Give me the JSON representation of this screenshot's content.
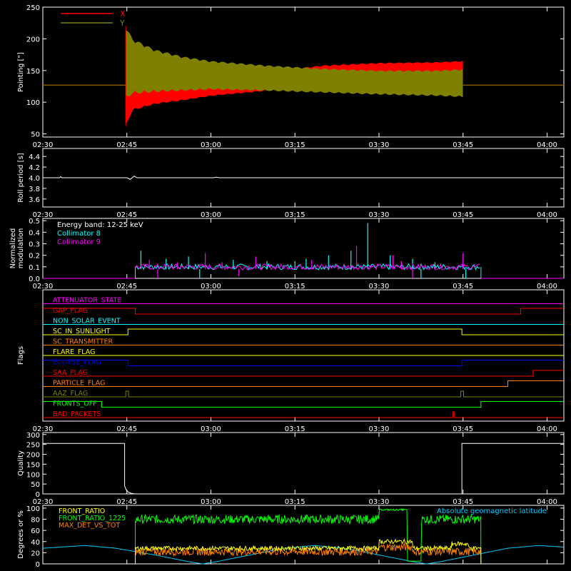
{
  "time_ticks": [
    "02:30",
    "02:45",
    "03:00",
    "03:15",
    "03:30",
    "03:45",
    "04:00"
  ],
  "chart_data": [
    {
      "type": "line",
      "id": "pointing",
      "ylabel": "Pointing [\"]",
      "ylim": [
        45,
        250
      ],
      "yticks": [
        50,
        100,
        150,
        200,
        250
      ],
      "legend_placement": "top-left",
      "series": [
        {
          "name": "X",
          "color": "#ff0000",
          "baseline": 127,
          "before": [
            [
              0,
              127
            ],
            [
              14.8,
              127
            ]
          ],
          "envelope_time": [
            14.8,
            16,
            20,
            25,
            30,
            40,
            50,
            60,
            70,
            75
          ],
          "envelope_low": [
            62,
            87,
            97,
            103,
            110,
            118,
            126,
            133,
            137,
            137
          ],
          "envelope_high": [
            125,
            138,
            134,
            131,
            132,
            148,
            158,
            162,
            163,
            165
          ],
          "after": [
            [
              75,
              127
            ],
            [
              93,
              127
            ]
          ]
        },
        {
          "name": "Y",
          "color": "#808000",
          "baseline": 127,
          "before": [
            [
              0,
              127
            ],
            [
              14.8,
              127
            ]
          ],
          "envelope_time": [
            14.8,
            16,
            20,
            25,
            30,
            40,
            50,
            60,
            70,
            75
          ],
          "envelope_low": [
            105,
            113,
            116,
            118,
            120,
            118,
            115,
            112,
            110,
            108
          ],
          "envelope_high": [
            220,
            200,
            183,
            172,
            165,
            158,
            153,
            150,
            150,
            152
          ],
          "after": [
            [
              75,
              127
            ],
            [
              93,
              127
            ]
          ]
        }
      ]
    },
    {
      "type": "line",
      "id": "roll-period",
      "ylabel": "Roll period [s]",
      "ylim": [
        3.45,
        4.55
      ],
      "yticks": [
        "3.6",
        "3.8",
        "4.0",
        "4.2",
        "4.4"
      ],
      "series": [
        {
          "name": "Roll period",
          "color": "#ffffff",
          "points": [
            [
              0,
              4.0
            ],
            [
              3,
              4.0
            ],
            [
              3.2,
              4.02
            ],
            [
              3.4,
              4.0
            ],
            [
              15,
              4.0
            ],
            [
              15.6,
              3.97
            ],
            [
              16.3,
              4.03
            ],
            [
              16.8,
              4.0
            ],
            [
              30.5,
              4.0
            ],
            [
              31,
              4.01
            ],
            [
              31.5,
              4.0
            ],
            [
              93,
              4.0
            ]
          ]
        }
      ]
    },
    {
      "type": "bar",
      "id": "modulation",
      "ylabel": "Normalized modulation",
      "ylim": [
        0,
        0.52
      ],
      "yticks": [
        "0.0",
        "0.1",
        "0.2",
        "0.3",
        "0.4",
        "0.5"
      ],
      "annotation": "Energy band: 12-25 keV",
      "legend_placement": "top-left",
      "active_range": [
        16.5,
        78.2
      ],
      "series": [
        {
          "name": "Collimator 8",
          "color": "#00ffff",
          "typical": 0.1,
          "spikes": [
            [
              17.5,
              0.24
            ],
            [
              22,
              0.17
            ],
            [
              26,
              0.19
            ],
            [
              34,
              0.16
            ],
            [
              40,
              0.15
            ],
            [
              45,
              0.15
            ],
            [
              47,
              0.17
            ],
            [
              51,
              0.2
            ],
            [
              55,
              0.24
            ],
            [
              58,
              0.48
            ],
            [
              62,
              0.2
            ],
            [
              66,
              0.17
            ],
            [
              70,
              0.14
            ]
          ],
          "dips": [
            [
              28,
              0.0
            ],
            [
              67.5,
              0.0
            ],
            [
              75.5,
              0.0
            ]
          ]
        },
        {
          "name": "Collimator 9",
          "color": "#ff00ff",
          "typical": 0.1,
          "spikes": [
            [
              19,
              0.16
            ],
            [
              24,
              0.14
            ],
            [
              29,
              0.22
            ],
            [
              32,
              0.14
            ],
            [
              38,
              0.19
            ],
            [
              48,
              0.16
            ],
            [
              56,
              0.28
            ],
            [
              62.5,
              0.2
            ],
            [
              64,
              0.15
            ],
            [
              75,
              0.22
            ]
          ],
          "dips": [
            [
              20.5,
              0.0
            ],
            [
              35,
              0.02
            ],
            [
              66,
              0.0
            ]
          ]
        }
      ]
    },
    {
      "type": "line",
      "id": "flags",
      "ylabel": "Flags",
      "series": [
        {
          "name": "ATTENUATOR_STATE",
          "color": "#ff00ff",
          "segments": [
            [
              0,
              0
            ],
            [
              93,
              0
            ]
          ]
        },
        {
          "name": "GAP_FLAG",
          "color": "#ff0000",
          "segments": [
            [
              0,
              1
            ],
            [
              16.5,
              1
            ],
            [
              16.5,
              0
            ],
            [
              85.3,
              0
            ],
            [
              85.3,
              1
            ],
            [
              93,
              1
            ]
          ]
        },
        {
          "name": "NON_SOLAR_EVENT",
          "color": "#00ffff",
          "segments": [
            [
              0,
              0
            ],
            [
              93,
              0
            ]
          ]
        },
        {
          "name": "SC_IN_SUNLIGHT",
          "color": "#ffff00",
          "segments": [
            [
              0,
              0
            ],
            [
              15.2,
              0
            ],
            [
              15.2,
              1
            ],
            [
              74.8,
              1
            ],
            [
              74.8,
              0
            ],
            [
              93,
              0
            ]
          ]
        },
        {
          "name": "SC_TRANSMITTER",
          "color": "#ff8000",
          "segments": [
            [
              0,
              0
            ],
            [
              93,
              0
            ]
          ]
        },
        {
          "name": "FLARE_FLAG",
          "color": "#ffff00",
          "segments": [
            [
              0,
              0
            ],
            [
              93,
              0
            ]
          ]
        },
        {
          "name": "ECLIPSE_FLAG",
          "color": "#0000ff",
          "segments": [
            [
              0,
              1
            ],
            [
              15.2,
              1
            ],
            [
              15.2,
              0
            ],
            [
              74.8,
              0
            ],
            [
              74.8,
              1
            ],
            [
              93,
              1
            ]
          ]
        },
        {
          "name": "SAA_FLAG",
          "color": "#ff0000",
          "segments": [
            [
              0,
              0
            ],
            [
              87.5,
              0
            ],
            [
              87.5,
              1
            ],
            [
              93,
              1
            ]
          ]
        },
        {
          "name": "PARTICLE_FLAG",
          "color": "#ff8000",
          "segments": [
            [
              0,
              0
            ],
            [
              83,
              0
            ],
            [
              83,
              1
            ],
            [
              93,
              1
            ]
          ]
        },
        {
          "name": "AAZ_FLAG",
          "color": "#808000",
          "segments": [
            [
              0,
              0
            ],
            [
              14.8,
              0
            ],
            [
              14.8,
              1
            ],
            [
              15.3,
              1
            ],
            [
              15.3,
              0
            ],
            [
              74.6,
              0
            ],
            [
              74.6,
              1
            ],
            [
              75.1,
              1
            ],
            [
              75.1,
              0
            ],
            [
              93,
              0
            ]
          ]
        },
        {
          "name": "FRONTS_OFF",
          "color": "#00ff00",
          "segments": [
            [
              0,
              1
            ],
            [
              10.5,
              1
            ],
            [
              10.5,
              0
            ],
            [
              78.2,
              0
            ],
            [
              78.2,
              1
            ],
            [
              93,
              1
            ]
          ]
        },
        {
          "name": "BAD_PACKETS",
          "color": "#ff0000",
          "segments": [
            [
              0,
              0
            ],
            [
              73.2,
              0
            ],
            [
              73.2,
              1
            ],
            [
              73.4,
              1
            ],
            [
              73.4,
              0
            ],
            [
              93,
              0
            ]
          ]
        }
      ]
    },
    {
      "type": "line",
      "id": "quality",
      "ylabel": "Quality",
      "ylim": [
        0,
        310
      ],
      "yticks": [
        0,
        50,
        100,
        150,
        200,
        250,
        300
      ],
      "series": [
        {
          "name": "Quality",
          "color": "#ffffff",
          "points": [
            [
              0,
              255
            ],
            [
              14.6,
              255
            ],
            [
              14.6,
              40
            ],
            [
              14.9,
              20
            ],
            [
              15.2,
              10
            ],
            [
              15.6,
              5
            ],
            [
              16,
              2
            ],
            [
              16.5,
              0
            ],
            [
              74.8,
              0
            ],
            [
              74.8,
              255
            ],
            [
              93,
              255
            ]
          ]
        }
      ]
    },
    {
      "type": "line",
      "id": "ratios",
      "ylabel": "Degrees or %",
      "ylim": [
        0,
        105
      ],
      "yticks": [
        0,
        20,
        40,
        60,
        80,
        100
      ],
      "legend_placement": "top-left",
      "series": [
        {
          "name": "FRONT_RATIO",
          "color": "#ffff00",
          "range": [
            16.5,
            78.2
          ],
          "level": 28,
          "noise": 4,
          "bumps": [
            [
              60,
              66,
              12
            ],
            [
              73,
              76,
              8
            ]
          ]
        },
        {
          "name": "FRONT_RATIO_1225",
          "color": "#00ff00",
          "range": [
            16.5,
            78.2
          ],
          "level": 80,
          "noise": 8,
          "plateau": [
            60,
            65,
            97
          ],
          "dip": [
            65,
            67.5,
            5
          ]
        },
        {
          "name": "MAX_DET_VS_TOT",
          "color": "#ff8000",
          "range": [
            16.5,
            78.2
          ],
          "level": 22,
          "noise": 7,
          "bumps": [
            [
              60,
              66,
              8
            ]
          ]
        },
        {
          "name": "Absolute geomagnetic latitude",
          "color": "#00c8ff",
          "legend_placement": "top-right",
          "points": [
            [
              0,
              28
            ],
            [
              7.5,
              33
            ],
            [
              13,
              28
            ],
            [
              20,
              16
            ],
            [
              26,
              4
            ],
            [
              28.5,
              0
            ],
            [
              31,
              4
            ],
            [
              37,
              16
            ],
            [
              43,
              28
            ],
            [
              48.5,
              33
            ],
            [
              54,
              28
            ],
            [
              60,
              16
            ],
            [
              66,
              4
            ],
            [
              68.5,
              0
            ],
            [
              71,
              4
            ],
            [
              77,
              16
            ],
            [
              83,
              28
            ],
            [
              88.5,
              33
            ],
            [
              93,
              30
            ]
          ]
        }
      ]
    }
  ]
}
